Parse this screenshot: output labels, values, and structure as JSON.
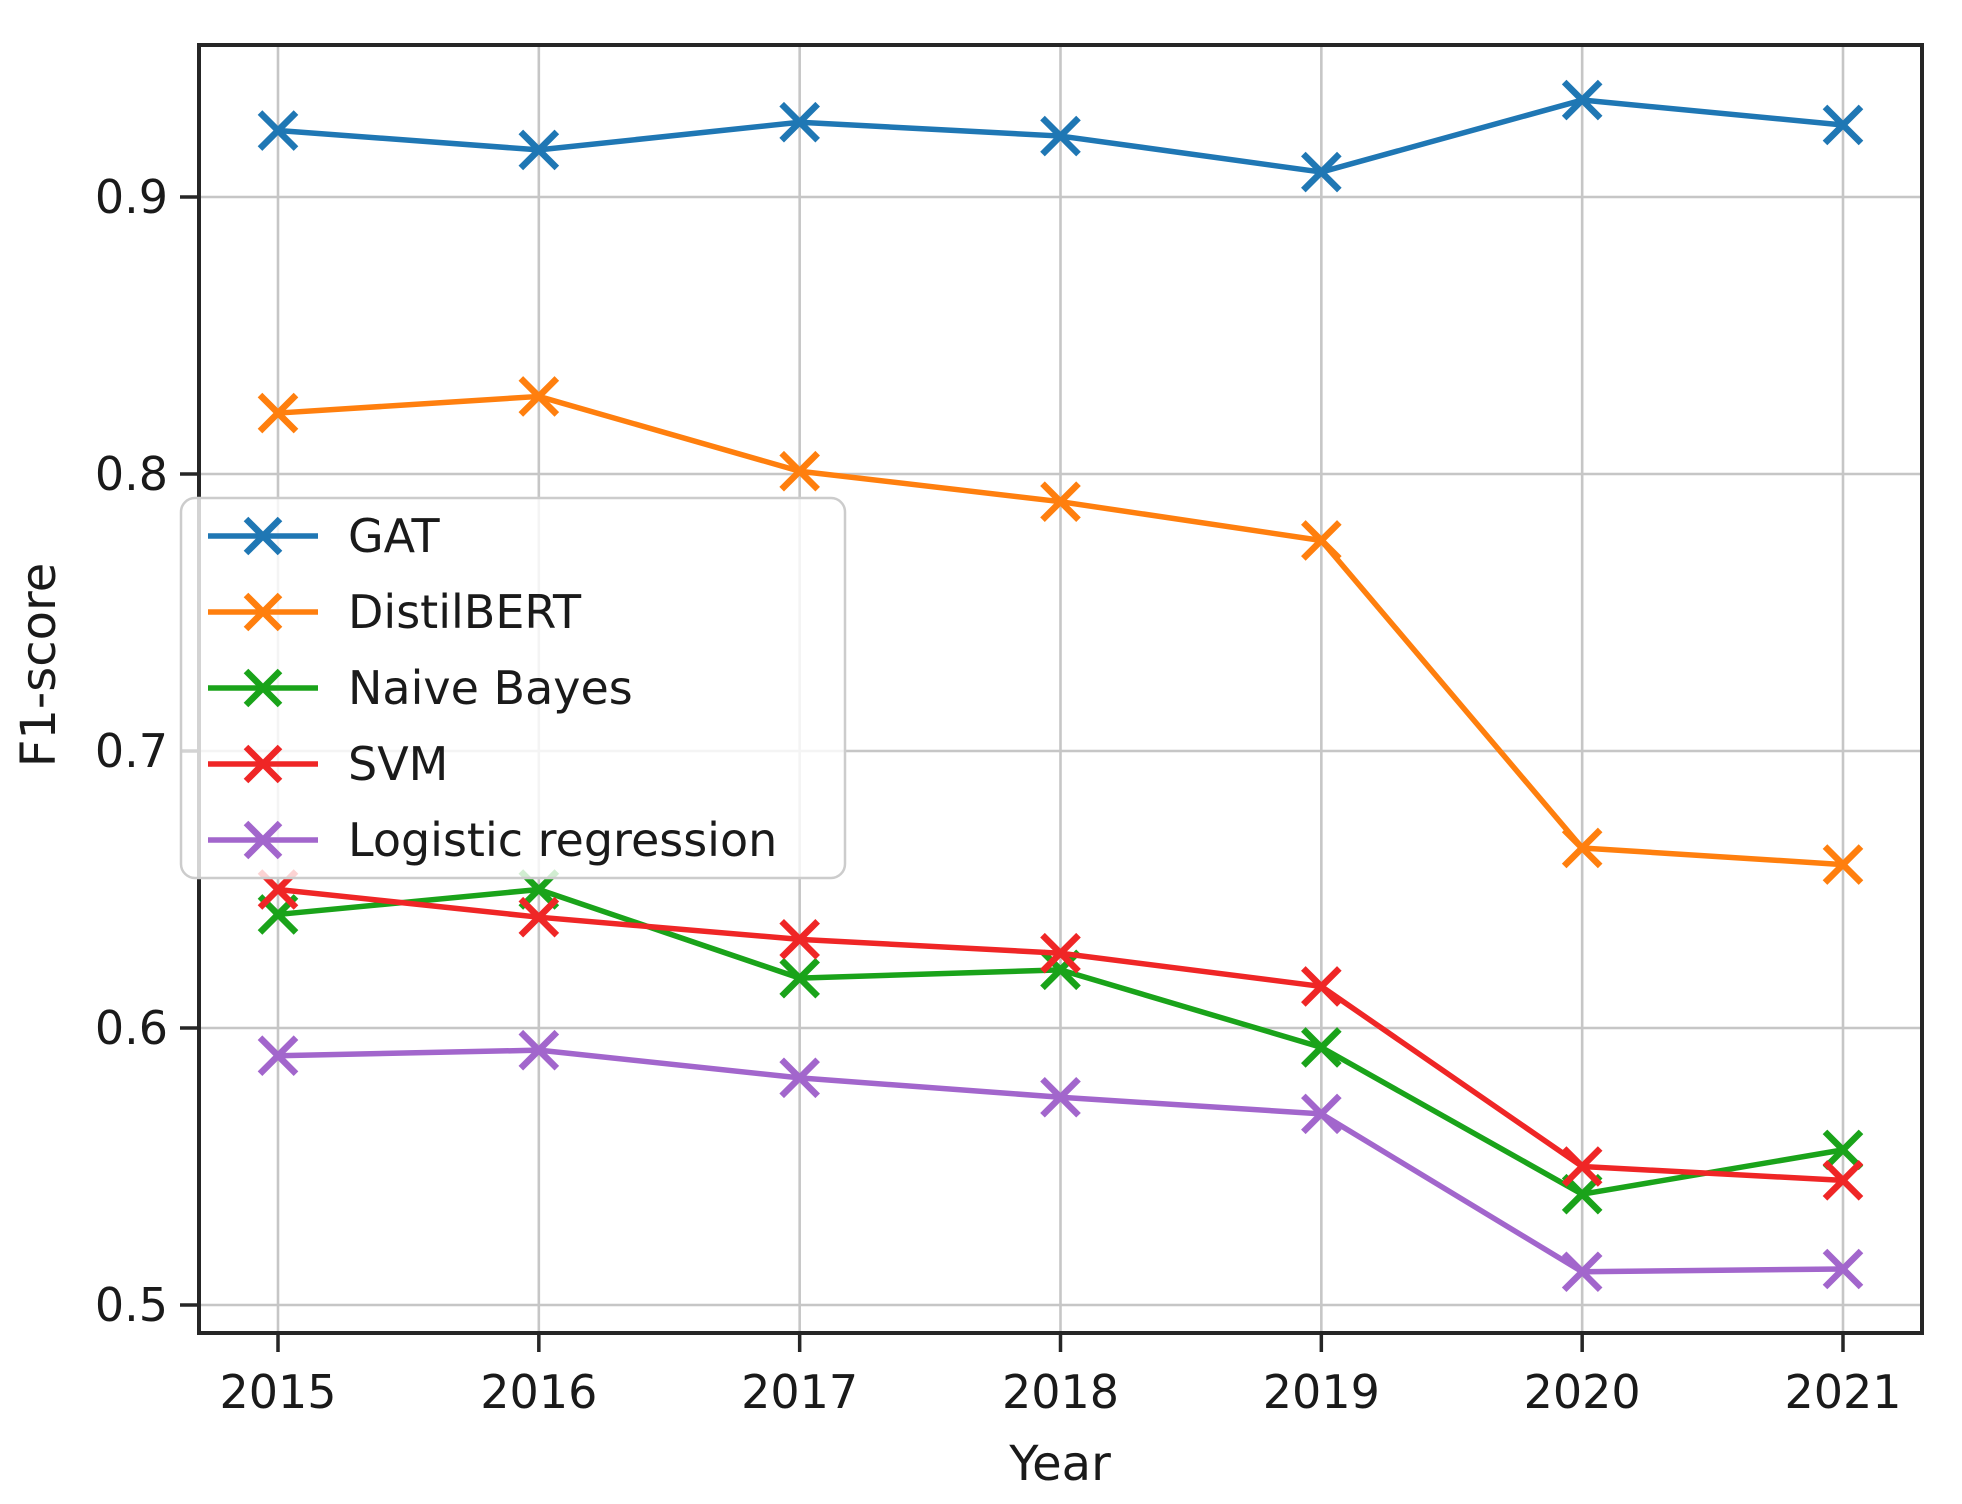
{
  "chart_data": {
    "type": "line",
    "title": "",
    "xlabel": "Year",
    "ylabel": "F1-score",
    "x": [
      2015,
      2016,
      2017,
      2018,
      2019,
      2020,
      2021
    ],
    "xlim": [
      2014.7,
      2021.3
    ],
    "ylim": [
      0.49,
      0.955
    ],
    "yticks": [
      0.5,
      0.6,
      0.7,
      0.8,
      0.9
    ],
    "grid": true,
    "marker": "x",
    "legend_position": "upper left inside",
    "colors": {
      "grid": "#c6c6c6",
      "spine": "#262626",
      "legend_border": "#cccccc",
      "legend_fill": "rgba(255,255,255,0.8)"
    },
    "series": [
      {
        "name": "GAT",
        "color": "#1f77b4",
        "values": [
          0.924,
          0.917,
          0.927,
          0.922,
          0.909,
          0.935,
          0.926
        ]
      },
      {
        "name": "DistilBERT",
        "color": "#ff7f0e",
        "values": [
          0.822,
          0.828,
          0.801,
          0.79,
          0.776,
          0.665,
          0.659
        ]
      },
      {
        "name": "Naive Bayes",
        "color": "#1aa31a",
        "values": [
          0.641,
          0.65,
          0.618,
          0.621,
          0.593,
          0.54,
          0.556
        ]
      },
      {
        "name": "SVM",
        "color": "#ef2626",
        "values": [
          0.65,
          0.64,
          0.632,
          0.627,
          0.615,
          0.55,
          0.545
        ]
      },
      {
        "name": "Logistic regression",
        "color": "#a266cc",
        "values": [
          0.59,
          0.592,
          0.582,
          0.575,
          0.569,
          0.512,
          0.513
        ]
      }
    ]
  }
}
